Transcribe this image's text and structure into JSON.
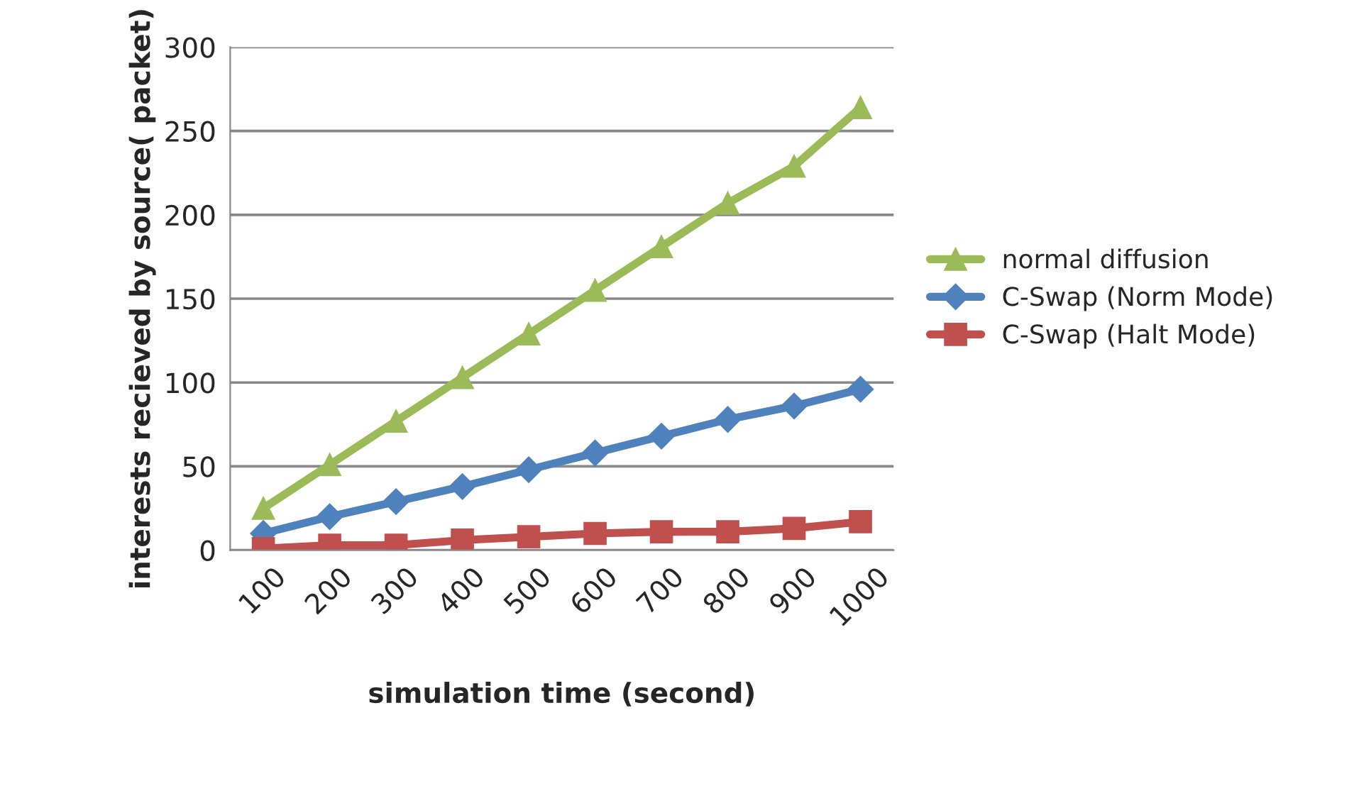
{
  "chart_data": {
    "type": "line",
    "xlabel": "simulation time (second)",
    "ylabel": "interests recieved by source( packet)",
    "categories": [
      "100",
      "200",
      "300",
      "400",
      "500",
      "600",
      "700",
      "800",
      "900",
      "1000"
    ],
    "series": [
      {
        "name": "normal diffusion",
        "color": "#9bbb59",
        "marker": "triangle",
        "values": [
          25,
          51,
          77,
          103,
          129,
          155,
          181,
          207,
          229,
          264
        ]
      },
      {
        "name": "C-Swap (Norm Mode)",
        "color": "#4f81bd",
        "marker": "diamond",
        "values": [
          10,
          20,
          29,
          38,
          48,
          58,
          68,
          78,
          86,
          96
        ]
      },
      {
        "name": "C-Swap (Halt Mode)",
        "color": "#c0504d",
        "marker": "square",
        "values": [
          1,
          3,
          3,
          6,
          8,
          10,
          11,
          11,
          13,
          17
        ]
      }
    ],
    "ylim": [
      0,
      300
    ],
    "yticks": [
      0,
      50,
      100,
      150,
      200,
      250,
      300
    ],
    "grid": "y",
    "legend": "right",
    "line_style": "solid"
  }
}
